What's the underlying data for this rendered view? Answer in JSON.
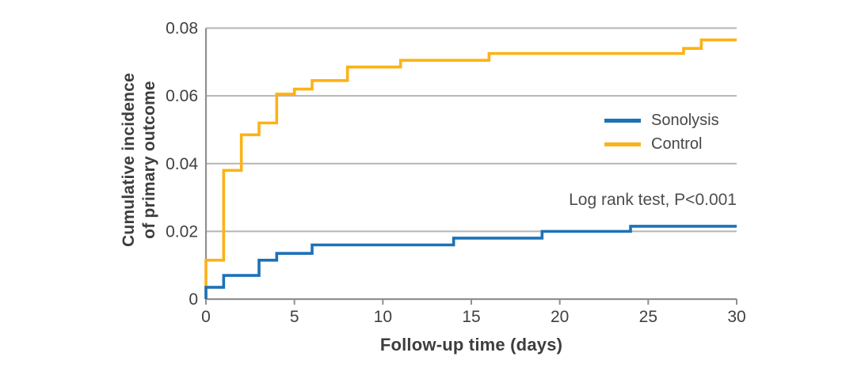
{
  "figure": {
    "y_axis_title_lines": [
      "Cumulative incidence",
      "of primary outcome"
    ],
    "x_axis_title": "Follow-up time (days)",
    "annotation_text": "Log rank test, P<0.001"
  },
  "chart_data": {
    "type": "line",
    "subtype": "step-after cumulative incidence (Kaplan-Meier style)",
    "title": "",
    "xlabel": "Follow-up time (days)",
    "ylabel": "Cumulative incidence of primary outcome",
    "xlim": [
      0,
      30
    ],
    "ylim": [
      0,
      0.08
    ],
    "x_ticks": [
      0,
      5,
      10,
      15,
      20,
      25,
      30
    ],
    "y_ticks": [
      0,
      0.02,
      0.04,
      0.06,
      0.08
    ],
    "grid": "horizontal gridlines at y ticks",
    "legend_position": "inside upper right",
    "annotation": "Log rank test, P<0.001",
    "series": [
      {
        "name": "Sonolysis",
        "color": "#1c72b8",
        "start": [
          0,
          0
        ],
        "steps": [
          [
            0,
            0.0035
          ],
          [
            1,
            0.007
          ],
          [
            3,
            0.0115
          ],
          [
            4,
            0.0135
          ],
          [
            6,
            0.016
          ],
          [
            14,
            0.018
          ],
          [
            19,
            0.02
          ],
          [
            24,
            0.0215
          ]
        ],
        "end_x": 30,
        "final_value": 0.0215
      },
      {
        "name": "Control",
        "color": "#fcb216",
        "start": [
          0,
          0
        ],
        "steps": [
          [
            0,
            0.0115
          ],
          [
            1,
            0.038
          ],
          [
            2,
            0.0485
          ],
          [
            3,
            0.052
          ],
          [
            4,
            0.0605
          ],
          [
            5,
            0.062
          ],
          [
            6,
            0.0645
          ],
          [
            8,
            0.0685
          ],
          [
            11,
            0.0705
          ],
          [
            16,
            0.0725
          ],
          [
            27,
            0.074
          ],
          [
            28,
            0.0765
          ]
        ],
        "end_x": 30,
        "final_value": 0.0765
      }
    ],
    "colors": {
      "grid": "#b5b5b5",
      "axis": "#909090",
      "tick_text": "#404040",
      "title_text": "#3d3d3d",
      "annotation_text": "#4d4d4d"
    }
  }
}
